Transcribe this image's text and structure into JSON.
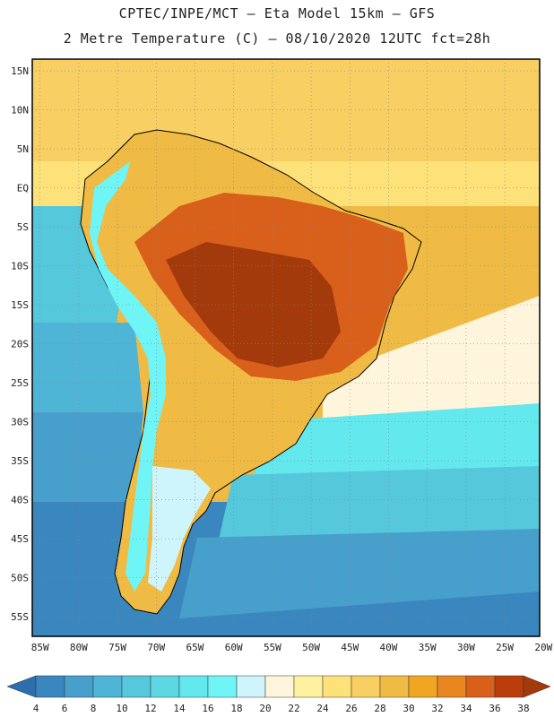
{
  "header": {
    "line1": "CPTEC/INPE/MCT –  Eta Model 15km – GFS",
    "line2": "2 Metre Temperature (C) – 08/10/2020 12UTC fct=28h"
  },
  "map": {
    "lat_labels": [
      "15N",
      "10N",
      "5N",
      "EQ",
      "5S",
      "10S",
      "15S",
      "20S",
      "25S",
      "30S",
      "35S",
      "40S",
      "45S",
      "50S",
      "55S"
    ],
    "lon_labels": [
      "85W",
      "80W",
      "75W",
      "70W",
      "65W",
      "60W",
      "55W",
      "50W",
      "45W",
      "40W",
      "35W",
      "30W",
      "25W",
      "20W"
    ],
    "lat_range": [
      -57.5,
      16.5
    ],
    "lon_range": [
      -86,
      -20.5
    ],
    "grid": "dotted"
  },
  "colorbar": {
    "labels": [
      "4",
      "6",
      "8",
      "10",
      "12",
      "14",
      "16",
      "18",
      "20",
      "22",
      "24",
      "26",
      "28",
      "30",
      "32",
      "34",
      "36",
      "38"
    ],
    "colors": [
      "#2d6ead",
      "#3a86be",
      "#47a0cc",
      "#4fb5d6",
      "#55c8dc",
      "#5cd8e3",
      "#63e8ee",
      "#6ff5f6",
      "#cdf5fb",
      "#fff5dc",
      "#fff1a0",
      "#fde27a",
      "#f7cf62",
      "#f0bb45",
      "#f0a622",
      "#e9861f",
      "#d9601a",
      "#bb3d0b",
      "#a33a0b"
    ]
  }
}
